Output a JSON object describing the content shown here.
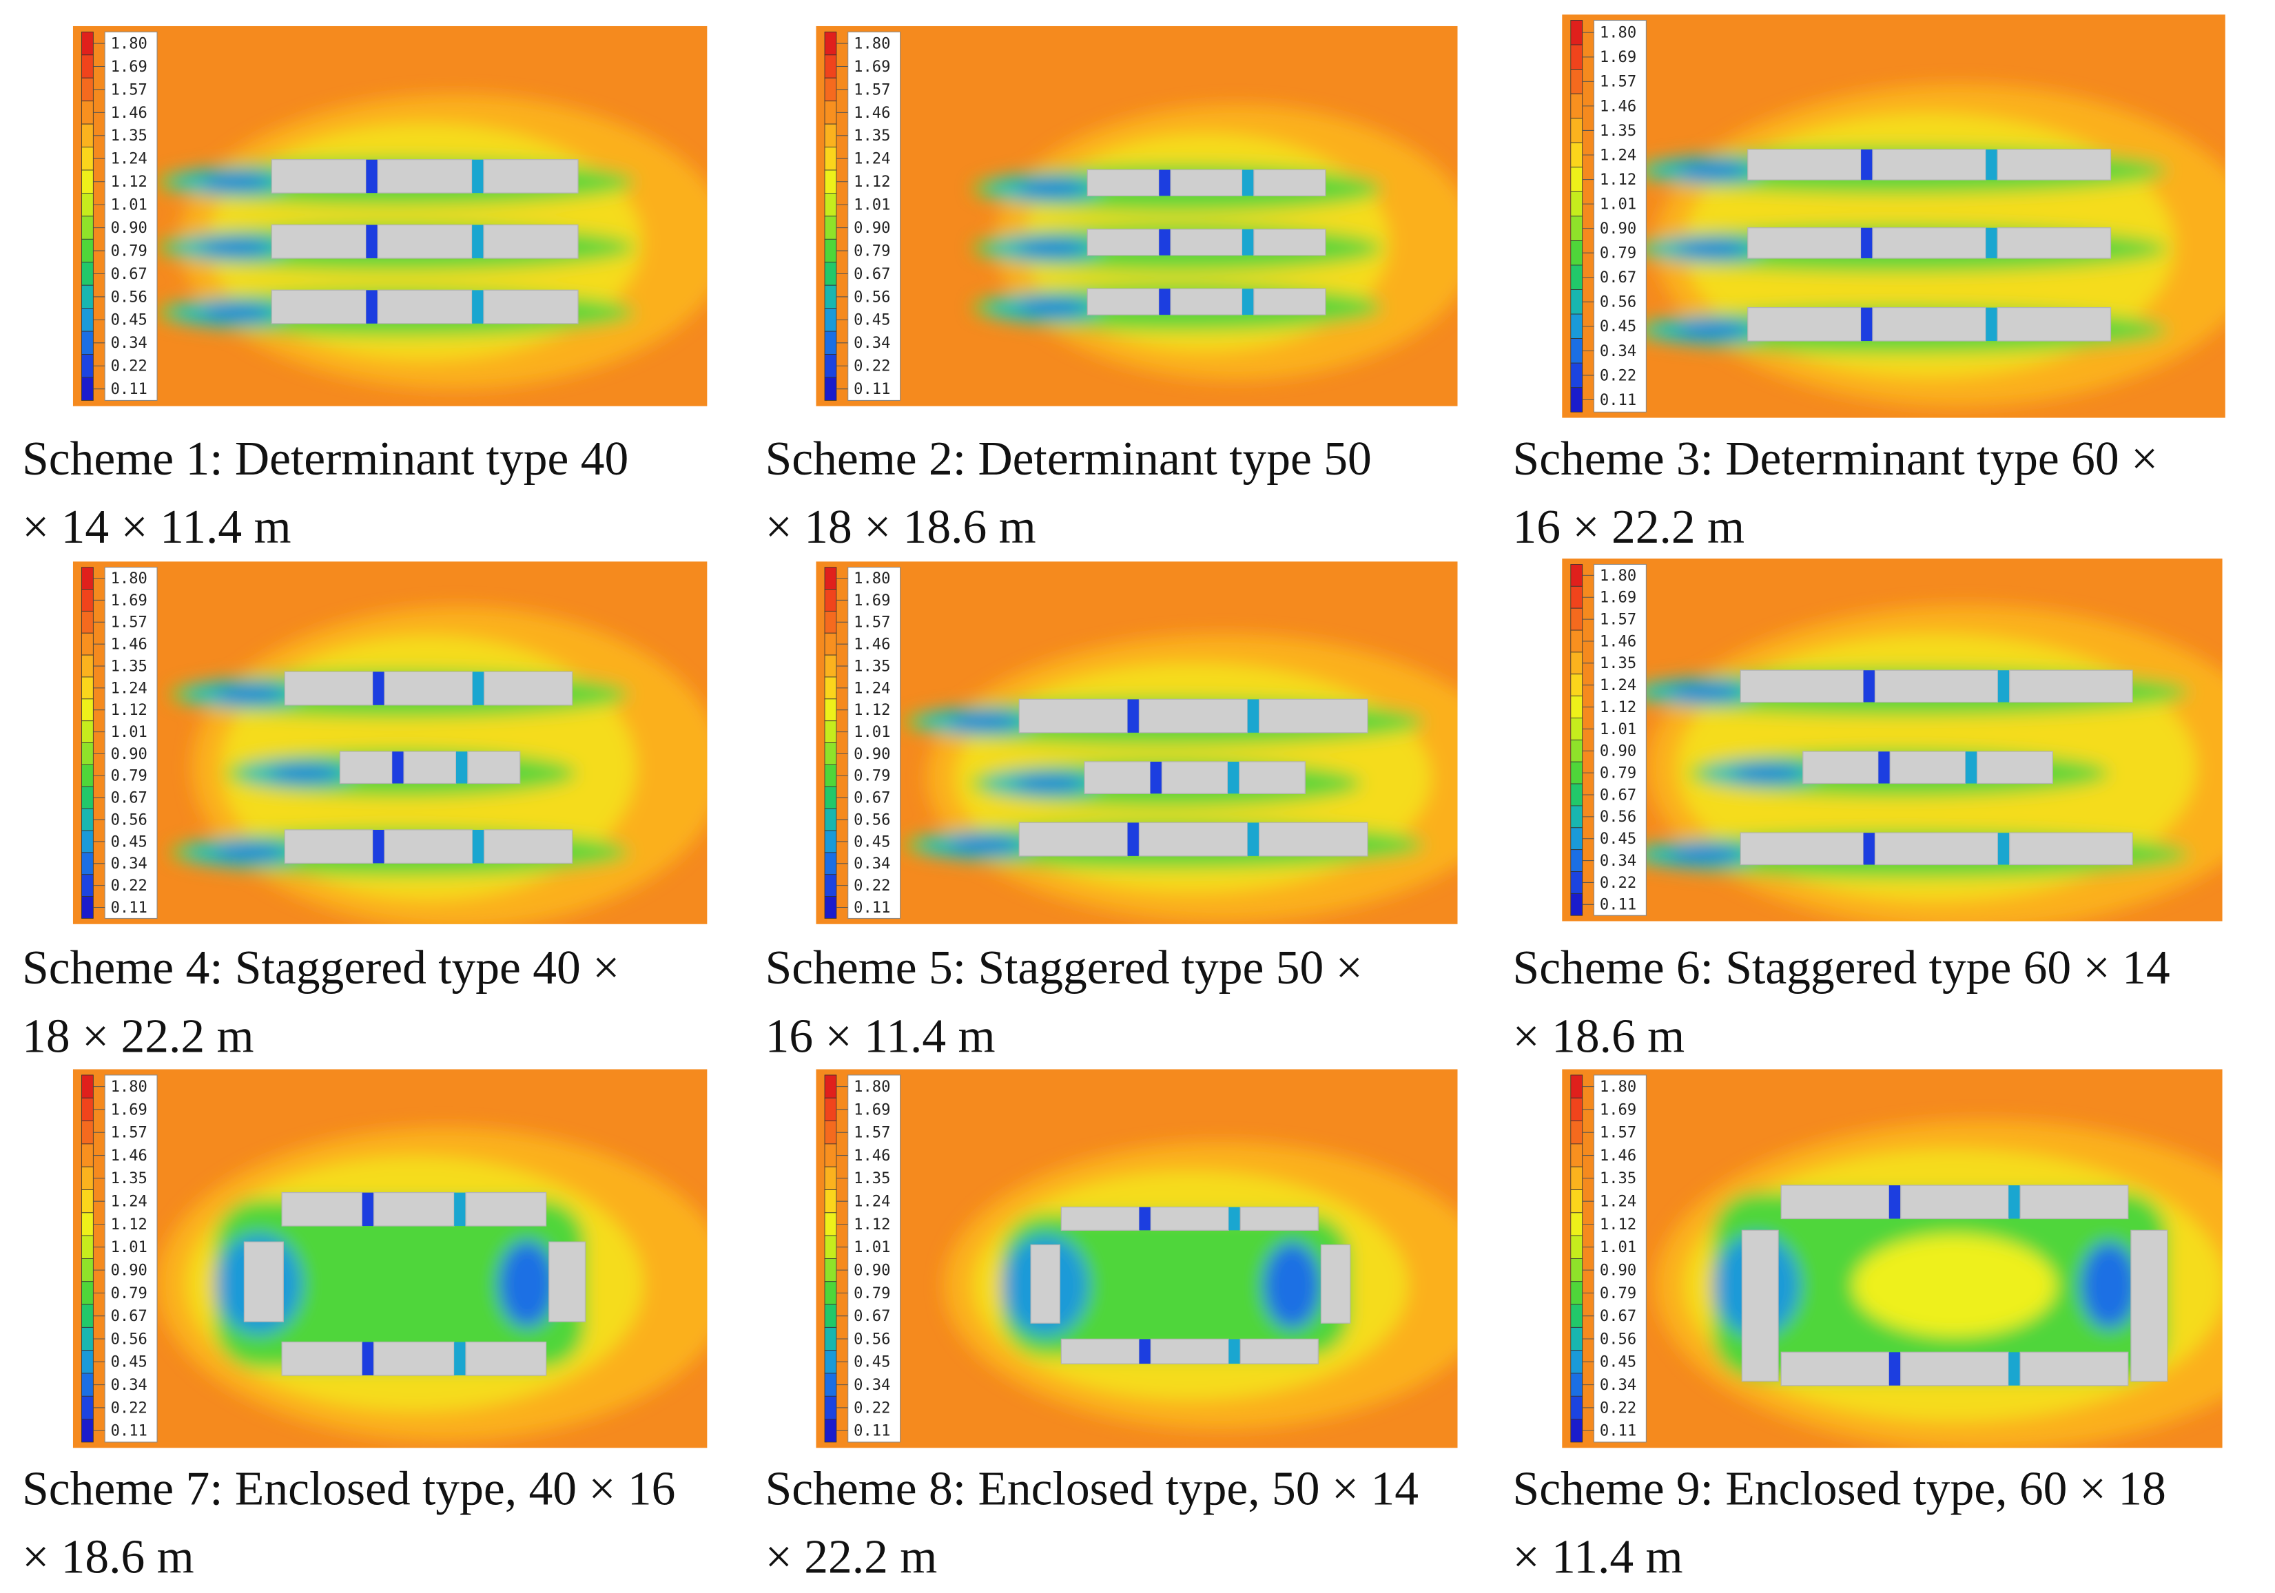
{
  "legend": {
    "labels": [
      "1.80",
      "1.69",
      "1.57",
      "1.46",
      "1.35",
      "1.24",
      "1.12",
      "1.01",
      "0.90",
      "0.79",
      "0.67",
      "0.56",
      "0.45",
      "0.34",
      "0.22",
      "0.11"
    ]
  },
  "panels": [
    {
      "caption": [
        "Scheme 1: Determinant type 40",
        "× 14 × 11.4 m"
      ]
    },
    {
      "caption": [
        "Scheme 2: Determinant type 50",
        "× 18 × 18.6 m"
      ]
    },
    {
      "caption": [
        "Scheme 3: Determinant type 60 ×",
        "16 × 22.2 m"
      ]
    },
    {
      "caption": [
        "Scheme 4: Staggered type 40 ×",
        "18 × 22.2 m"
      ]
    },
    {
      "caption": [
        "Scheme 5: Staggered type 50 ×",
        "16 × 11.4 m"
      ]
    },
    {
      "caption": [
        "Scheme 6: Staggered type 60 × 14",
        "× 18.6 m"
      ]
    },
    {
      "caption": [
        "Scheme 7: Enclosed type, 40 × 16",
        "× 18.6 m"
      ]
    },
    {
      "caption": [
        "Scheme 8: Enclosed type, 50 × 14",
        "× 22.2 m"
      ]
    },
    {
      "caption": [
        "Scheme 9: Enclosed type, 60 × 18",
        "× 11.4 m"
      ]
    }
  ]
}
